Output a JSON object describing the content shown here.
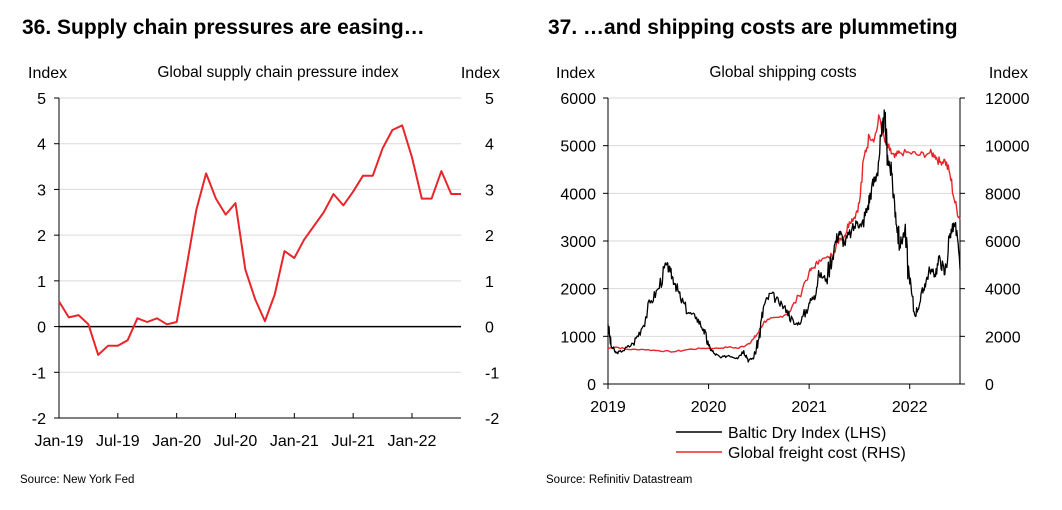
{
  "charts": [
    {
      "number_title": "36. Supply chain pressures are easing…",
      "source": "Source: New York Fed"
    },
    {
      "number_title": "37. …and shipping costs are plummeting",
      "source": "Source: Refinitiv Datastream"
    }
  ],
  "colors": {
    "red": "#e8262a",
    "black": "#000000",
    "grid": "#d9d9d9"
  },
  "chart_data": [
    {
      "type": "line",
      "title": "Global supply  chain pressure index",
      "ylabel_left": "Index",
      "ylabel_right": "Index",
      "ylim": [
        -2,
        5
      ],
      "yticks": [
        "-2",
        "-1",
        "0",
        "1",
        "2",
        "3",
        "4",
        "5"
      ],
      "xtick_labels": [
        "Jan-19",
        "Jul-19",
        "Jan-20",
        "Jul-20",
        "Jan-21",
        "Jul-21",
        "Jan-22"
      ],
      "xtick_months": [
        0,
        6,
        12,
        18,
        24,
        30,
        36
      ],
      "month_range": [
        0,
        41
      ],
      "series": [
        {
          "name": "Global supply chain pressure index",
          "color": "#e8262a",
          "months": [
            0,
            1,
            2,
            3,
            4,
            5,
            6,
            7,
            8,
            9,
            10,
            11,
            12,
            13,
            14,
            15,
            16,
            17,
            18,
            19,
            20,
            21,
            22,
            23,
            24,
            25,
            26,
            27,
            28,
            29,
            30,
            31,
            32,
            33,
            34,
            35,
            36,
            37,
            38,
            39,
            40,
            41
          ],
          "values": [
            0.55,
            0.2,
            0.25,
            0.05,
            -0.62,
            -0.42,
            -0.42,
            -0.3,
            0.18,
            0.1,
            0.18,
            0.05,
            0.1,
            1.3,
            2.55,
            3.35,
            2.8,
            2.45,
            2.7,
            1.25,
            0.6,
            0.12,
            0.7,
            1.65,
            1.5,
            1.9,
            2.2,
            2.5,
            2.9,
            2.65,
            2.95,
            3.3,
            3.3,
            3.9,
            4.3,
            4.4,
            3.7,
            2.8,
            2.8,
            3.4,
            2.9,
            2.9
          ]
        }
      ]
    },
    {
      "type": "line",
      "title": "Global shipping costs",
      "ylabel_left": "Index",
      "ylabel_right": "Index",
      "ylim_left": [
        0,
        6000
      ],
      "ylim_right": [
        0,
        12000
      ],
      "yticks_left": [
        "0",
        "1000",
        "2000",
        "3000",
        "4000",
        "5000",
        "6000"
      ],
      "yticks_right": [
        "0",
        "2000",
        "4000",
        "6000",
        "8000",
        "10000",
        "12000"
      ],
      "xtick_labels": [
        "2019",
        "2020",
        "2021",
        "2022"
      ],
      "xtick_years": [
        2019,
        2020,
        2021,
        2022
      ],
      "x_range": [
        2019,
        2022.5
      ],
      "series": [
        {
          "name": "Baltic Dry Index (LHS)",
          "axis": "left",
          "color": "#000000",
          "x": [
            2019.0,
            2019.03,
            2019.08,
            2019.15,
            2019.25,
            2019.33,
            2019.42,
            2019.5,
            2019.58,
            2019.62,
            2019.67,
            2019.72,
            2019.8,
            2019.88,
            2019.95,
            2020.0,
            2020.05,
            2020.12,
            2020.2,
            2020.28,
            2020.35,
            2020.4,
            2020.45,
            2020.5,
            2020.55,
            2020.62,
            2020.7,
            2020.78,
            2020.85,
            2020.92,
            2021.0,
            2021.05,
            2021.1,
            2021.17,
            2021.25,
            2021.3,
            2021.35,
            2021.42,
            2021.48,
            2021.52,
            2021.58,
            2021.62,
            2021.67,
            2021.72,
            2021.75,
            2021.78,
            2021.82,
            2021.86,
            2021.9,
            2021.95,
            2022.0,
            2022.05,
            2022.1,
            2022.15,
            2022.2,
            2022.25,
            2022.3,
            2022.35,
            2022.4,
            2022.45,
            2022.5
          ],
          "values": [
            1250,
            800,
            650,
            700,
            850,
            1150,
            1700,
            2000,
            2500,
            2350,
            2100,
            1800,
            1500,
            1400,
            1150,
            800,
            650,
            550,
            600,
            550,
            700,
            500,
            550,
            950,
            1650,
            1900,
            1700,
            1550,
            1250,
            1300,
            1700,
            1850,
            2300,
            2200,
            2900,
            3200,
            2950,
            3200,
            3400,
            3300,
            3700,
            4100,
            4400,
            5200,
            5600,
            4800,
            4400,
            3600,
            2900,
            3200,
            2100,
            1450,
            1700,
            2100,
            2400,
            2300,
            2650,
            2300,
            3150,
            3350,
            2400
          ]
        },
        {
          "name": "Global freight cost (RHS)",
          "axis": "right",
          "color": "#e8262a",
          "x": [
            2019.0,
            2019.08,
            2019.2,
            2019.35,
            2019.5,
            2019.65,
            2019.8,
            2019.95,
            2020.1,
            2020.2,
            2020.3,
            2020.4,
            2020.45,
            2020.5,
            2020.55,
            2020.6,
            2020.7,
            2020.8,
            2020.9,
            2021.0,
            2021.05,
            2021.1,
            2021.2,
            2021.25,
            2021.3,
            2021.35,
            2021.4,
            2021.45,
            2021.5,
            2021.55,
            2021.6,
            2021.65,
            2021.7,
            2021.75,
            2021.8,
            2021.85,
            2021.9,
            2022.0,
            2022.1,
            2022.2,
            2022.25,
            2022.3,
            2022.35,
            2022.4,
            2022.45,
            2022.5
          ],
          "values": [
            1500,
            1550,
            1450,
            1450,
            1400,
            1350,
            1450,
            1500,
            1500,
            1550,
            1500,
            1700,
            1900,
            2200,
            2600,
            2700,
            2800,
            3000,
            3700,
            4700,
            4900,
            5200,
            5300,
            5600,
            6100,
            6200,
            6800,
            7000,
            7600,
            9600,
            10400,
            10300,
            11200,
            10200,
            9800,
            9500,
            9700,
            9700,
            9600,
            9700,
            9600,
            9300,
            9400,
            8800,
            7600,
            6900
          ]
        }
      ],
      "legend": [
        "Baltic Dry Index (LHS)",
        "Global freight cost (RHS)"
      ],
      "legend_position": "bottom"
    }
  ]
}
